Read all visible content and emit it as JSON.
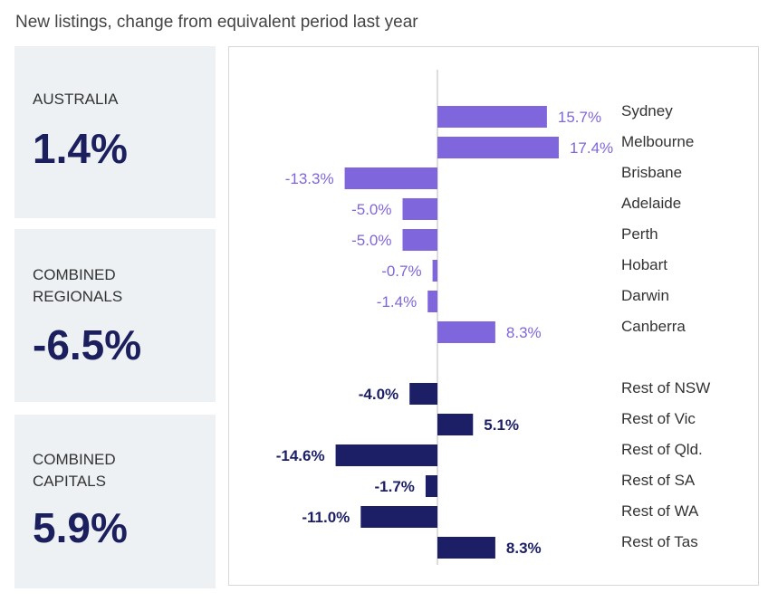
{
  "title": "New listings, change from equivalent period last year",
  "cards": [
    {
      "label": "AUSTRALIA",
      "value": "1.4%"
    },
    {
      "label": "COMBINED\nREGIONALS",
      "value": "-6.5%"
    },
    {
      "label": "COMBINED\nCAPITALS",
      "value": "5.9%"
    }
  ],
  "colors": {
    "capital": "#8066dc",
    "regional": "#1c1f66",
    "axis": "#bbbbbb",
    "card": "#edf1f4"
  },
  "chart_data": {
    "type": "bar",
    "orientation": "horizontal",
    "title": "New listings, change from equivalent period last year",
    "xlim": [
      -16,
      20
    ],
    "value_suffix": "%",
    "series": [
      {
        "name": "Capitals",
        "categories": [
          "Sydney",
          "Melbourne",
          "Brisbane",
          "Adelaide",
          "Perth",
          "Hobart",
          "Darwin",
          "Canberra"
        ],
        "values": [
          15.7,
          17.4,
          -13.3,
          -5.0,
          -5.0,
          -0.7,
          -1.4,
          8.3
        ]
      },
      {
        "name": "Regionals",
        "categories": [
          "Rest of NSW",
          "Rest of Vic",
          "Rest of Qld.",
          "Rest of SA",
          "Rest of WA",
          "Rest of Tas"
        ],
        "values": [
          -4.0,
          5.1,
          -14.6,
          -1.7,
          -11.0,
          8.3
        ]
      }
    ]
  }
}
